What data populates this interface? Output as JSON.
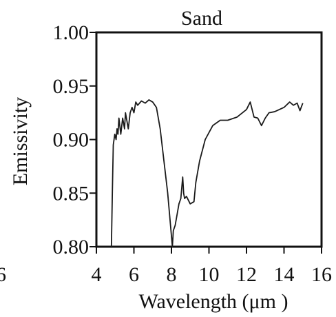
{
  "chart_data": {
    "type": "line",
    "title": "Sand",
    "xlabel": "Wavelength (μm )",
    "ylabel": "Emissivity",
    "xlim": [
      4,
      16
    ],
    "ylim": [
      0.8,
      1.0
    ],
    "x_ticks": [
      "4",
      "6",
      "8",
      "10",
      "12",
      "14",
      "16"
    ],
    "y_ticks": [
      "0.80",
      "0.85",
      "0.90",
      "0.95",
      "1.00"
    ],
    "partial_left_tick": "6",
    "grid": false,
    "series": [
      {
        "name": "",
        "x": [
          4.8,
          4.85,
          4.9,
          4.98,
          5.05,
          5.1,
          5.15,
          5.2,
          5.3,
          5.4,
          5.5,
          5.55,
          5.6,
          5.7,
          5.8,
          5.9,
          6.0,
          6.1,
          6.2,
          6.4,
          6.6,
          6.8,
          7.0,
          7.2,
          7.4,
          7.6,
          7.8,
          7.9,
          8.0,
          8.05,
          8.1,
          8.2,
          8.3,
          8.4,
          8.5,
          8.6,
          8.65,
          8.7,
          8.8,
          9.0,
          9.2,
          9.3,
          9.5,
          9.8,
          10.2,
          10.6,
          11.0,
          11.5,
          12.0,
          12.2,
          12.4,
          12.6,
          12.8,
          13.0,
          13.2,
          13.5,
          14.0,
          14.3,
          14.5,
          14.7,
          14.85,
          15.0
        ],
        "y": [
          0.8,
          0.85,
          0.895,
          0.905,
          0.9,
          0.91,
          0.905,
          0.92,
          0.905,
          0.92,
          0.91,
          0.925,
          0.92,
          0.91,
          0.925,
          0.93,
          0.925,
          0.935,
          0.932,
          0.936,
          0.934,
          0.937,
          0.935,
          0.93,
          0.91,
          0.88,
          0.85,
          0.83,
          0.81,
          0.8,
          0.815,
          0.82,
          0.83,
          0.84,
          0.845,
          0.865,
          0.85,
          0.845,
          0.847,
          0.84,
          0.842,
          0.86,
          0.88,
          0.9,
          0.913,
          0.918,
          0.918,
          0.921,
          0.928,
          0.935,
          0.921,
          0.92,
          0.913,
          0.92,
          0.925,
          0.926,
          0.93,
          0.935,
          0.932,
          0.934,
          0.927,
          0.934
        ]
      }
    ]
  }
}
